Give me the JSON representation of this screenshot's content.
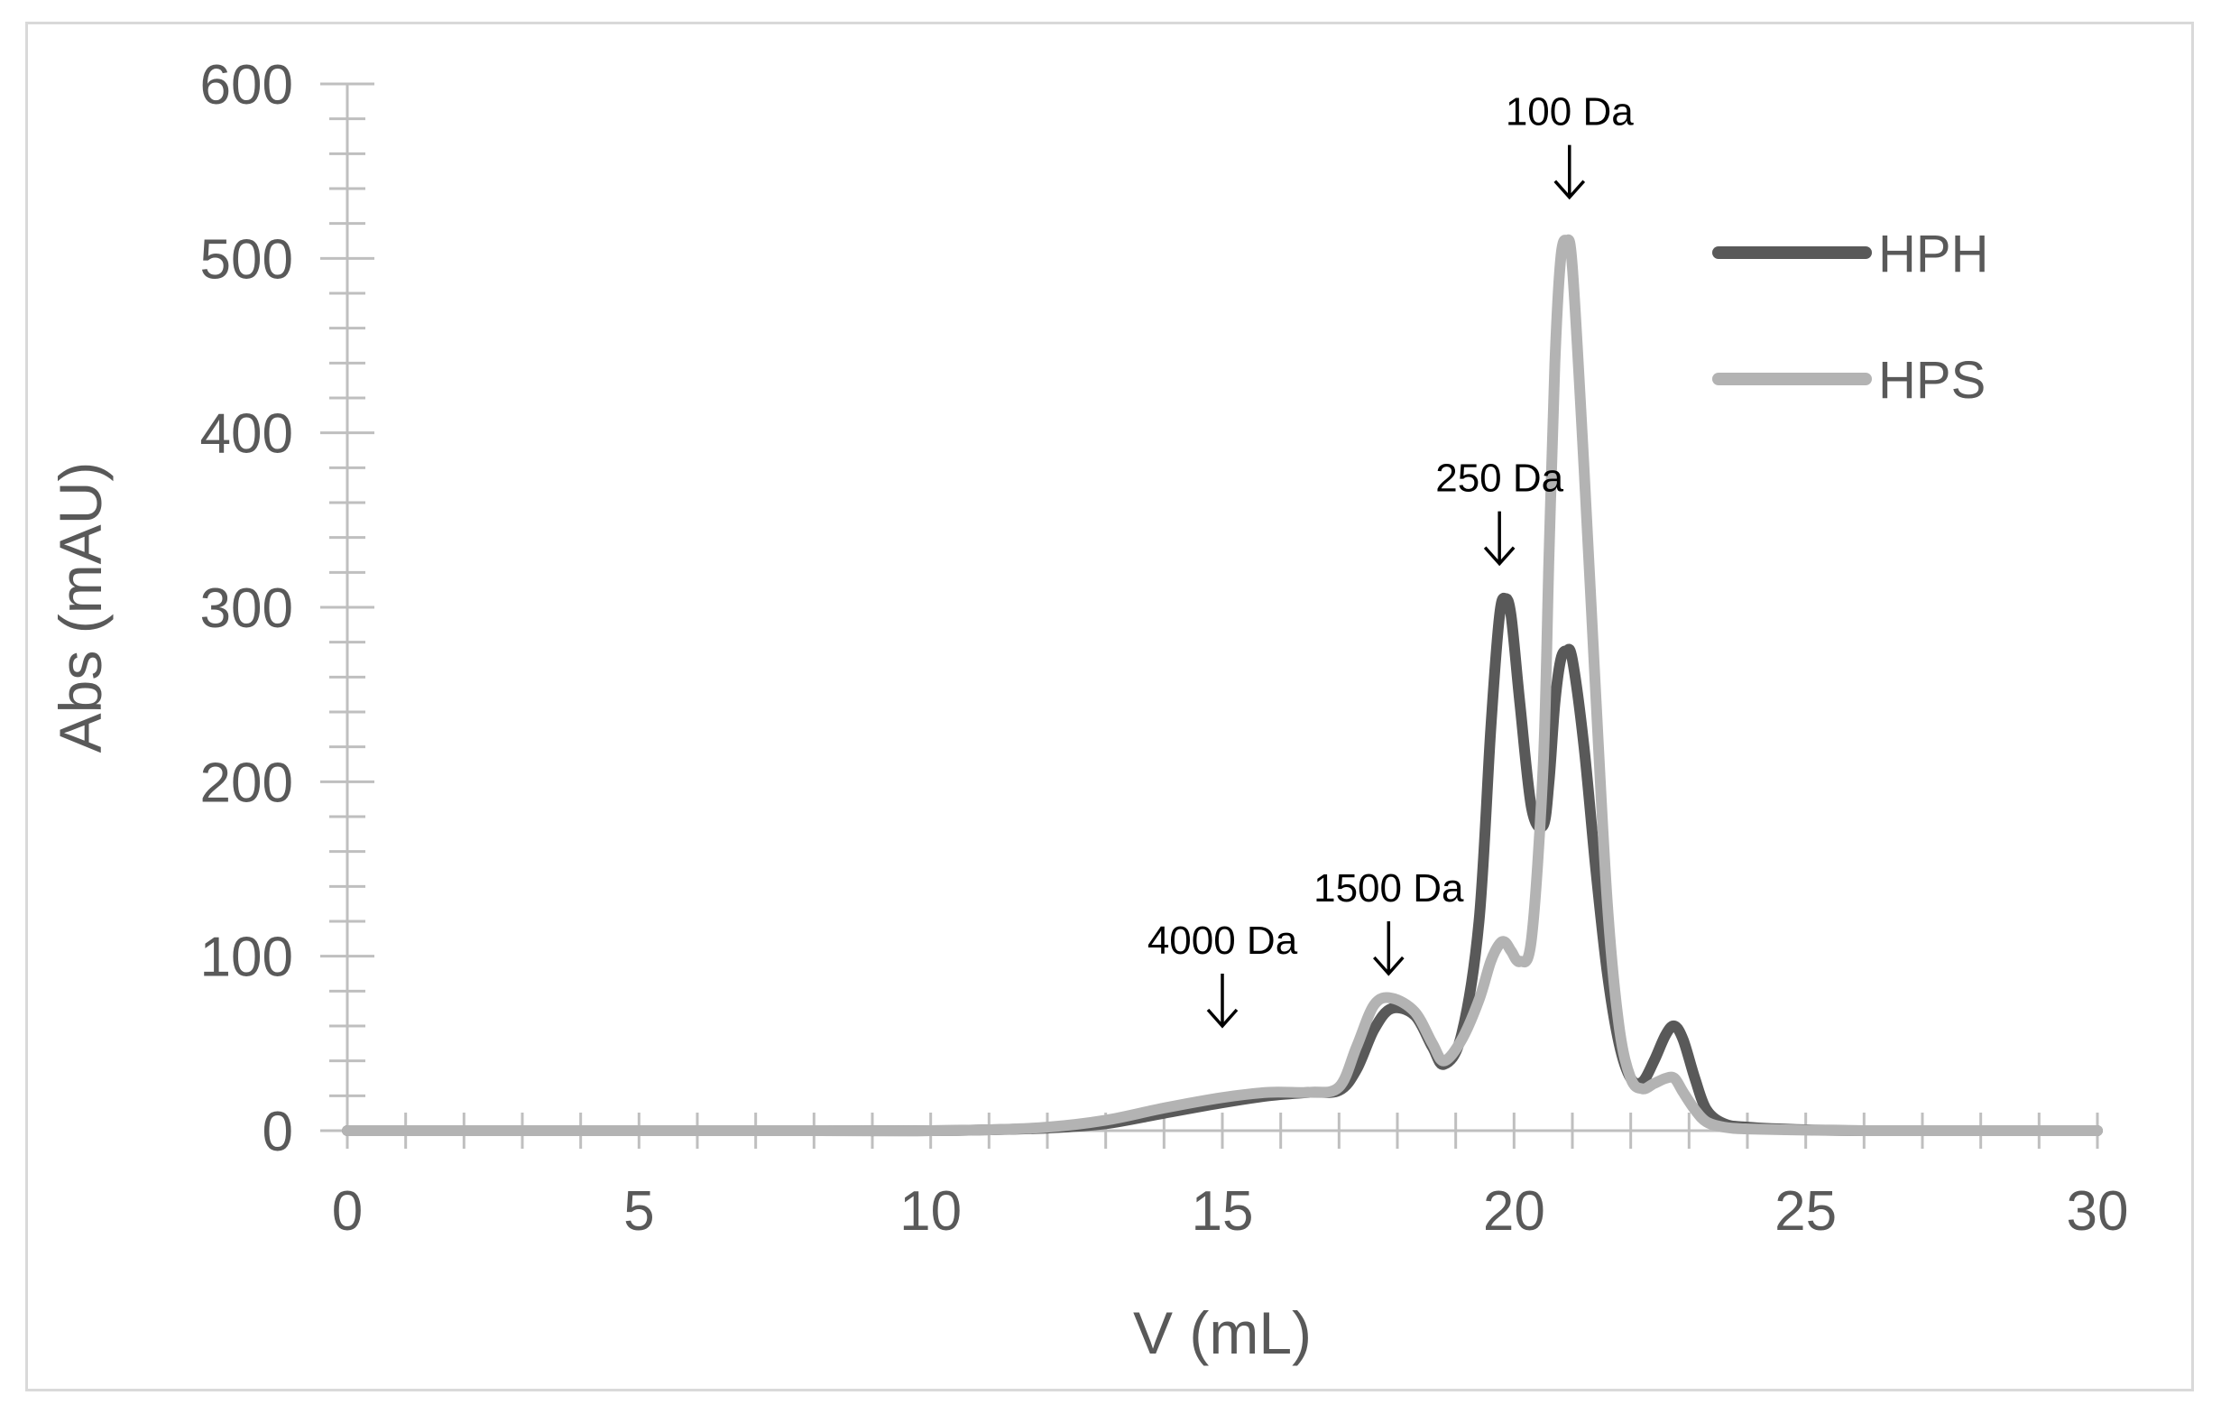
{
  "chart_data": {
    "type": "line",
    "title": "",
    "xlabel": "V (mL)",
    "ylabel": "Abs (mAU)",
    "xlim": [
      0,
      30
    ],
    "ylim": [
      0,
      600
    ],
    "x_ticks": [
      0,
      5,
      10,
      15,
      20,
      25,
      30
    ],
    "y_ticks": [
      0,
      100,
      200,
      300,
      400,
      500,
      600
    ],
    "grid": false,
    "legend_position": "top-right",
    "series": [
      {
        "name": "HPH",
        "color": "#595959",
        "x": [
          0,
          8,
          10,
          11,
          12,
          13,
          14,
          15,
          15.8,
          16.5,
          17,
          17.3,
          17.6,
          17.9,
          18.3,
          18.6,
          18.8,
          19.1,
          19.4,
          19.6,
          19.75,
          19.85,
          19.95,
          20.1,
          20.3,
          20.5,
          20.6,
          20.7,
          20.8,
          20.9,
          21.0,
          21.2,
          21.4,
          21.6,
          21.8,
          22.0,
          22.2,
          22.4,
          22.6,
          22.75,
          22.9,
          23.1,
          23.3,
          23.6,
          24,
          25,
          26,
          28,
          30
        ],
        "y": [
          0,
          0,
          0,
          0.5,
          1.5,
          4,
          10,
          16,
          20,
          22,
          23,
          35,
          58,
          70,
          66,
          48,
          38,
          55,
          120,
          230,
          295,
          305,
          295,
          245,
          185,
          175,
          200,
          245,
          270,
          275,
          270,
          220,
          150,
          90,
          50,
          30,
          28,
          40,
          55,
          60,
          52,
          30,
          12,
          4,
          2,
          0.5,
          0,
          0,
          0
        ]
      },
      {
        "name": "HPS",
        "color": "#b3b3b3",
        "x": [
          0,
          8,
          10,
          11,
          12,
          13,
          14,
          15,
          15.8,
          16.5,
          17,
          17.3,
          17.6,
          17.9,
          18.3,
          18.6,
          18.8,
          19.1,
          19.4,
          19.6,
          19.75,
          19.85,
          19.95,
          20.1,
          20.3,
          20.5,
          20.6,
          20.7,
          20.8,
          20.9,
          21.0,
          21.2,
          21.4,
          21.6,
          21.8,
          22.0,
          22.2,
          22.4,
          22.6,
          22.75,
          22.9,
          23.1,
          23.3,
          23.6,
          24,
          25,
          26,
          28,
          30
        ],
        "y": [
          0,
          0,
          0,
          0.5,
          2,
          6,
          13,
          19,
          22,
          22,
          25,
          48,
          72,
          76,
          68,
          50,
          40,
          52,
          75,
          97,
          107,
          108,
          103,
          97,
          110,
          210,
          330,
          440,
          500,
          510,
          495,
          380,
          250,
          130,
          60,
          30,
          24,
          27,
          30,
          30,
          22,
          12,
          5,
          2,
          1,
          0.3,
          0,
          0,
          0
        ]
      }
    ],
    "annotations": [
      {
        "text": "4000 Da",
        "x": 15,
        "y": 60
      },
      {
        "text": "1500 Da",
        "x": 17.85,
        "y": 90
      },
      {
        "text": "250 Da",
        "x": 19.75,
        "y": 325
      },
      {
        "text": "100 Da",
        "x": 20.95,
        "y": 535
      }
    ]
  }
}
